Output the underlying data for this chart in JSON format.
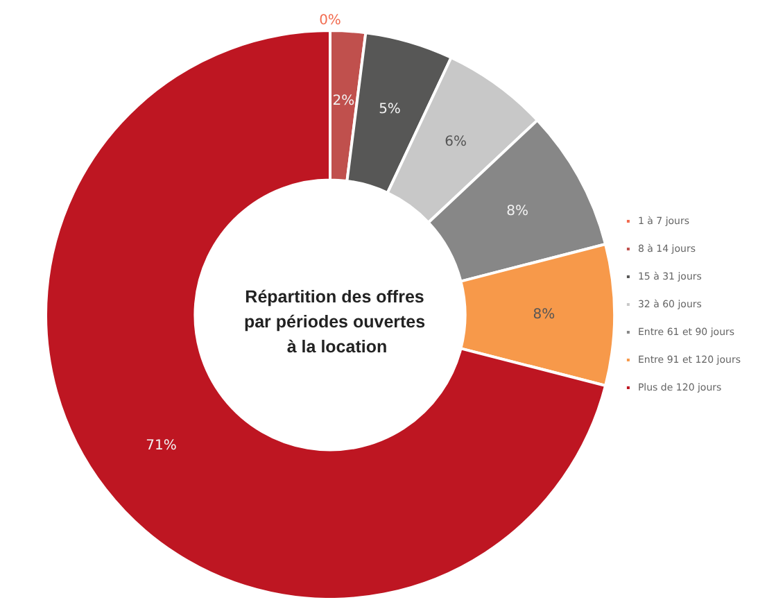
{
  "chart_data": {
    "type": "donut",
    "title": "Répartition des offres par périodes ouvertes à la location",
    "categories": [
      "1 à 7 jours",
      "8 à 14 jours",
      "15 à 31 jours",
      "32 à 60 jours",
      "Entre 61 et 90 jours",
      "Entre 91 et 120 jours",
      "Plus de 120 jours"
    ],
    "values": [
      0,
      2,
      5,
      6,
      8,
      8,
      71
    ],
    "colors": [
      "#f26b4f",
      "#c0504d",
      "#575756",
      "#c8c8c8",
      "#878787",
      "#f7994a",
      "#be1622"
    ],
    "value_labels": [
      "0%",
      "2%",
      "5%",
      "6%",
      "8%",
      "8%",
      "71%"
    ],
    "legend": "right"
  }
}
